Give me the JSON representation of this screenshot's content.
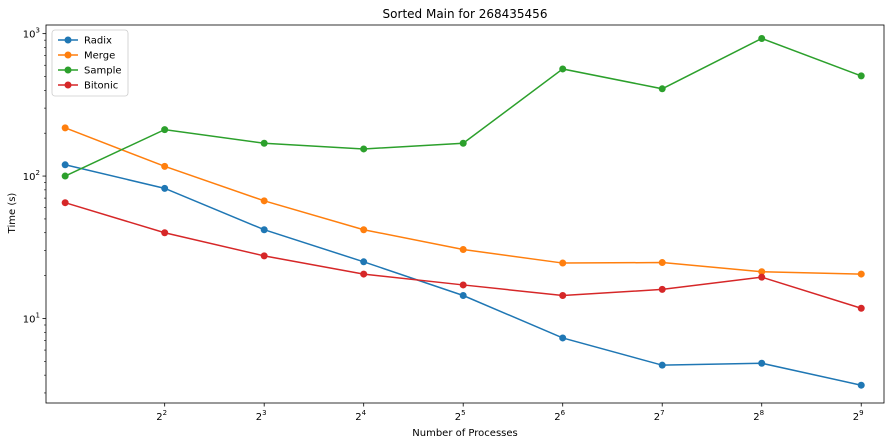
{
  "chart_data": {
    "type": "line",
    "title": "Sorted Main for 268435456",
    "xlabel": "Number of Processes",
    "ylabel": "Time (s)",
    "x_scale": "log2",
    "y_scale": "log10",
    "x": [
      2,
      4,
      8,
      16,
      32,
      64,
      128,
      256,
      512
    ],
    "xlim": [
      1.75,
      600
    ],
    "ylim": [
      2.55,
      1150
    ],
    "x_ticks": [
      {
        "base": "2",
        "exp": "2",
        "value": 4
      },
      {
        "base": "2",
        "exp": "3",
        "value": 8
      },
      {
        "base": "2",
        "exp": "4",
        "value": 16
      },
      {
        "base": "2",
        "exp": "5",
        "value": 32
      },
      {
        "base": "2",
        "exp": "6",
        "value": 64
      },
      {
        "base": "2",
        "exp": "7",
        "value": 128
      },
      {
        "base": "2",
        "exp": "8",
        "value": 256
      },
      {
        "base": "2",
        "exp": "9",
        "value": 512
      }
    ],
    "y_ticks": [
      {
        "base": "10",
        "exp": "1",
        "value": 10
      },
      {
        "base": "10",
        "exp": "2",
        "value": 100
      },
      {
        "base": "10",
        "exp": "3",
        "value": 1000
      }
    ],
    "grid": false,
    "legend_position": "top-left",
    "series": [
      {
        "name": "Radix",
        "color": "#1f77b4",
        "values": [
          120,
          82,
          42,
          25,
          14.5,
          7.3,
          4.7,
          4.85,
          3.4
        ]
      },
      {
        "name": "Merge",
        "color": "#ff7f0e",
        "values": [
          218,
          117,
          67,
          42,
          30.5,
          24.5,
          24.7,
          21.3,
          20.5
        ]
      },
      {
        "name": "Sample",
        "color": "#2ca02c",
        "values": [
          100,
          212,
          170,
          155,
          170,
          565,
          410,
          925,
          505
        ]
      },
      {
        "name": "Bitonic",
        "color": "#d62728",
        "values": [
          65,
          40,
          27.5,
          20.5,
          17.2,
          14.5,
          16,
          19.5,
          11.8
        ]
      }
    ]
  }
}
